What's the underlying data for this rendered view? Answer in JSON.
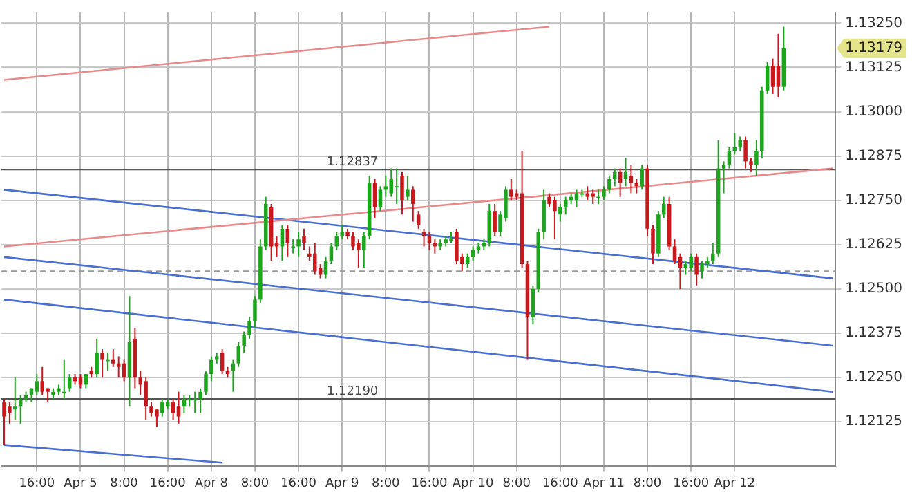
{
  "chart_data": {
    "type": "candlestick",
    "categories": [
      null,
      null,
      null,
      null,
      null,
      null,
      "16:00",
      null,
      null,
      null,
      null,
      null,
      null,
      null,
      "Apr 5",
      null,
      null,
      null,
      null,
      null,
      null,
      null,
      "8:00",
      null,
      null,
      null,
      null,
      null,
      null,
      null,
      "16:00",
      null,
      null,
      null,
      null,
      null,
      null,
      null,
      "Apr 8",
      null,
      null,
      null,
      null,
      null,
      null,
      null,
      "8:00",
      null,
      null,
      null,
      null,
      null,
      null,
      null,
      "16:00",
      null,
      null,
      null,
      null,
      null,
      null,
      null,
      "Apr 9",
      null,
      null,
      null,
      null,
      null,
      null,
      null,
      "8:00",
      null,
      null,
      null,
      null,
      null,
      null,
      null,
      "16:00",
      null,
      null,
      null,
      null,
      null,
      null,
      null,
      "Apr 10",
      null,
      null,
      null,
      null,
      null,
      null,
      null,
      "8:00",
      null,
      null,
      null,
      null,
      null,
      null,
      null,
      "16:00",
      null,
      null,
      null,
      null,
      null,
      null,
      null,
      "Apr 11",
      null,
      null,
      null,
      null,
      null,
      null,
      null,
      "8:00",
      null,
      null,
      null,
      null,
      null,
      null,
      null,
      "16:00",
      null,
      null,
      null,
      null,
      null,
      null,
      null,
      "Apr 12",
      null,
      null,
      null,
      null,
      null,
      null,
      null,
      null,
      null,
      null,
      null,
      null,
      null,
      null,
      null,
      null,
      null,
      null
    ],
    "ohlc": [
      [
        1.1218,
        1.1219,
        1.1206,
        1.1214
      ],
      [
        1.1217,
        1.1218,
        1.1212,
        1.1215
      ],
      [
        1.1216,
        1.1225,
        1.1213,
        1.1217
      ],
      [
        1.1217,
        1.122,
        1.1212,
        1.1219
      ],
      [
        1.1219,
        1.1221,
        1.1218,
        1.122
      ],
      [
        1.122,
        1.1222,
        1.1218,
        1.1222
      ],
      [
        1.1221,
        1.1226,
        1.122,
        1.1224
      ],
      [
        1.1224,
        1.1228,
        1.122,
        1.1221
      ],
      [
        1.1222,
        1.1222,
        1.1218,
        1.1221
      ],
      [
        1.122,
        1.1222,
        1.1219,
        1.1221
      ],
      [
        1.1221,
        1.1223,
        1.122,
        1.1222
      ],
      [
        1.1221,
        1.123,
        1.1219,
        1.1221
      ],
      [
        1.1222,
        1.1226,
        1.1221,
        1.1225
      ],
      [
        1.1225,
        1.1226,
        1.1223,
        1.1224
      ],
      [
        1.1225,
        1.1226,
        1.1222,
        1.1223
      ],
      [
        1.1223,
        1.1226,
        1.1222,
        1.1226
      ],
      [
        1.1227,
        1.1228,
        1.1225,
        1.1226
      ],
      [
        1.1226,
        1.1236,
        1.1225,
        1.1232
      ],
      [
        1.1232,
        1.1233,
        1.1225,
        1.123
      ],
      [
        1.123,
        1.1232,
        1.1227,
        1.123
      ],
      [
        1.123,
        1.1233,
        1.1228,
        1.1229
      ],
      [
        1.1229,
        1.1231,
        1.1225,
        1.1228
      ],
      [
        1.1229,
        1.123,
        1.1224,
        1.1225
      ],
      [
        1.1225,
        1.1248,
        1.1217,
        1.1235
      ],
      [
        1.1236,
        1.1239,
        1.1222,
        1.1225
      ],
      [
        1.1225,
        1.1227,
        1.122,
        1.1223
      ],
      [
        1.1224,
        1.1225,
        1.1213,
        1.1217
      ],
      [
        1.1217,
        1.1218,
        1.1214,
        1.1215
      ],
      [
        1.1216,
        1.1216,
        1.1211,
        1.1214
      ],
      [
        1.1215,
        1.1219,
        1.1214,
        1.1218
      ],
      [
        1.1217,
        1.1219,
        1.1216,
        1.1218
      ],
      [
        1.1218,
        1.1219,
        1.1213,
        1.1215
      ],
      [
        1.1217,
        1.1221,
        1.1212,
        1.1214
      ],
      [
        1.1217,
        1.122,
        1.1215,
        1.1219
      ],
      [
        1.1219,
        1.122,
        1.1217,
        1.1219
      ],
      [
        1.1219,
        1.1221,
        1.1215,
        1.1219
      ],
      [
        1.1219,
        1.1222,
        1.1215,
        1.1221
      ],
      [
        1.1221,
        1.1227,
        1.122,
        1.1226
      ],
      [
        1.1226,
        1.1231,
        1.1224,
        1.123
      ],
      [
        1.123,
        1.1232,
        1.1229,
        1.1231
      ],
      [
        1.1232,
        1.1233,
        1.1226,
        1.1227
      ],
      [
        1.1227,
        1.1228,
        1.1225,
        1.1226
      ],
      [
        1.1227,
        1.123,
        1.1221,
        1.1229
      ],
      [
        1.1229,
        1.1235,
        1.1228,
        1.1234
      ],
      [
        1.1234,
        1.1238,
        1.1232,
        1.1237
      ],
      [
        1.1237,
        1.1242,
        1.1236,
        1.1241
      ],
      [
        1.1241,
        1.1248,
        1.1239,
        1.1247
      ],
      [
        1.1247,
        1.1264,
        1.1246,
        1.1262
      ],
      [
        1.1262,
        1.1276,
        1.1261,
        1.1274
      ],
      [
        1.1273,
        1.1274,
        1.1258,
        1.1262
      ],
      [
        1.1263,
        1.1265,
        1.1259,
        1.1262
      ],
      [
        1.1262,
        1.1268,
        1.1258,
        1.1267
      ],
      [
        1.1267,
        1.1268,
        1.1259,
        1.1263
      ],
      [
        1.1262,
        1.1264,
        1.126,
        1.1262
      ],
      [
        1.1262,
        1.1266,
        1.1259,
        1.1264
      ],
      [
        1.1265,
        1.1267,
        1.1261,
        1.1263
      ],
      [
        1.126,
        1.1262,
        1.1258,
        1.1259
      ],
      [
        1.126,
        1.1263,
        1.1254,
        1.1255
      ],
      [
        1.1256,
        1.1257,
        1.1253,
        1.1254
      ],
      [
        1.1254,
        1.1259,
        1.1253,
        1.1258
      ],
      [
        1.1258,
        1.1263,
        1.1257,
        1.1262
      ],
      [
        1.1262,
        1.1266,
        1.1261,
        1.1265
      ],
      [
        1.1265,
        1.1268,
        1.1264,
        1.1266
      ],
      [
        1.1266,
        1.1267,
        1.1264,
        1.1265
      ],
      [
        1.1265,
        1.1266,
        1.1261,
        1.1262
      ],
      [
        1.1263,
        1.1264,
        1.1256,
        1.1261
      ],
      [
        1.1261,
        1.1266,
        1.1256,
        1.1265
      ],
      [
        1.1265,
        1.1282,
        1.1264,
        1.128
      ],
      [
        1.128,
        1.1281,
        1.127,
        1.1273
      ],
      [
        1.1273,
        1.1279,
        1.1272,
        1.1278
      ],
      [
        1.1278,
        1.1282,
        1.1276,
        1.1279
      ],
      [
        1.1277,
        1.1284,
        1.1276,
        1.1281
      ],
      [
        1.1279,
        1.1284,
        1.1274,
        1.1279
      ],
      [
        1.1282,
        1.1283,
        1.1271,
        1.1275
      ],
      [
        1.1276,
        1.1282,
        1.1275,
        1.1278
      ],
      [
        1.1278,
        1.1279,
        1.1269,
        1.1274
      ],
      [
        1.1271,
        1.1272,
        1.1267,
        1.1268
      ],
      [
        1.1266,
        1.1267,
        1.1262,
        1.1265
      ],
      [
        1.1265,
        1.1266,
        1.1261,
        1.1263
      ],
      [
        1.1263,
        1.1264,
        1.126,
        1.1262
      ],
      [
        1.1262,
        1.1264,
        1.1261,
        1.1263
      ],
      [
        1.1263,
        1.1265,
        1.1262,
        1.1264
      ],
      [
        1.1264,
        1.1266,
        1.1263,
        1.1264
      ],
      [
        1.1266,
        1.1267,
        1.1257,
        1.1258
      ],
      [
        1.1259,
        1.126,
        1.1255,
        1.1257
      ],
      [
        1.1257,
        1.126,
        1.1256,
        1.1259
      ],
      [
        1.1259,
        1.1262,
        1.1258,
        1.1261
      ],
      [
        1.1261,
        1.1263,
        1.126,
        1.1262
      ],
      [
        1.1262,
        1.1264,
        1.1261,
        1.1263
      ],
      [
        1.1263,
        1.1274,
        1.1262,
        1.1272
      ],
      [
        1.1272,
        1.1274,
        1.1265,
        1.1266
      ],
      [
        1.1266,
        1.1272,
        1.1265,
        1.1271
      ],
      [
        1.127,
        1.1279,
        1.1269,
        1.1278
      ],
      [
        1.1278,
        1.1281,
        1.1275,
        1.1276
      ],
      [
        1.1277,
        1.1278,
        1.1275,
        1.1276
      ],
      [
        1.1277,
        1.1289,
        1.1256,
        1.1257
      ],
      [
        1.1257,
        1.1258,
        1.123,
        1.1242
      ],
      [
        1.1242,
        1.1251,
        1.124,
        1.125
      ],
      [
        1.125,
        1.1267,
        1.1249,
        1.1266
      ],
      [
        1.1266,
        1.1278,
        1.1264,
        1.1275
      ],
      [
        1.1276,
        1.1277,
        1.1273,
        1.1274
      ],
      [
        1.1275,
        1.1276,
        1.1264,
        1.1272
      ],
      [
        1.1271,
        1.1274,
        1.1269,
        1.1273
      ],
      [
        1.1273,
        1.1276,
        1.1271,
        1.1275
      ],
      [
        1.1275,
        1.1277,
        1.1274,
        1.1276
      ],
      [
        1.1275,
        1.1278,
        1.1273,
        1.1277
      ],
      [
        1.1277,
        1.1278,
        1.1276,
        1.1277
      ],
      [
        1.1277,
        1.1279,
        1.1275,
        1.1276
      ],
      [
        1.1277,
        1.1278,
        1.1274,
        1.1276
      ],
      [
        1.1276,
        1.1278,
        1.1274,
        1.1276
      ],
      [
        1.1276,
        1.1279,
        1.1275,
        1.1278
      ],
      [
        1.1278,
        1.1282,
        1.1277,
        1.1281
      ],
      [
        1.1281,
        1.1284,
        1.1279,
        1.1283
      ],
      [
        1.1283,
        1.1284,
        1.1276,
        1.128
      ],
      [
        1.1281,
        1.1287,
        1.1279,
        1.1283
      ],
      [
        1.1282,
        1.1285,
        1.1277,
        1.128
      ],
      [
        1.128,
        1.1281,
        1.1277,
        1.1279
      ],
      [
        1.1279,
        1.1285,
        1.1278,
        1.1284
      ],
      [
        1.1284,
        1.1285,
        1.1265,
        1.1267
      ],
      [
        1.1267,
        1.1268,
        1.1257,
        1.126
      ],
      [
        1.126,
        1.1272,
        1.1259,
        1.1271
      ],
      [
        1.1271,
        1.1276,
        1.127,
        1.1274
      ],
      [
        1.1274,
        1.1276,
        1.1261,
        1.1262
      ],
      [
        1.1262,
        1.1264,
        1.1257,
        1.1258
      ],
      [
        1.1259,
        1.126,
        1.125,
        1.1256
      ],
      [
        1.1256,
        1.1258,
        1.1254,
        1.1257
      ],
      [
        1.1256,
        1.126,
        1.1255,
        1.1259
      ],
      [
        1.1259,
        1.126,
        1.1251,
        1.1254
      ],
      [
        1.1255,
        1.1258,
        1.1253,
        1.1257
      ],
      [
        1.1257,
        1.1259,
        1.1256,
        1.1258
      ],
      [
        1.1258,
        1.1263,
        1.1257,
        1.126
      ],
      [
        1.126,
        1.1292,
        1.1259,
        1.1284
      ],
      [
        1.1284,
        1.1286,
        1.1277,
        1.1285
      ],
      [
        1.1285,
        1.129,
        1.1284,
        1.1289
      ],
      [
        1.1289,
        1.1294,
        1.1288,
        1.129
      ],
      [
        1.129,
        1.1293,
        1.1289,
        1.1292
      ],
      [
        1.1292,
        1.1293,
        1.1284,
        1.1286
      ],
      [
        1.1286,
        1.1287,
        1.1283,
        1.1285
      ],
      [
        1.1285,
        1.1292,
        1.1282,
        1.1289
      ],
      [
        1.1289,
        1.1307,
        1.1287,
        1.1306
      ],
      [
        1.1306,
        1.1314,
        1.1305,
        1.1313
      ],
      [
        1.1313,
        1.1315,
        1.1305,
        1.1307
      ],
      [
        1.1313,
        1.1322,
        1.1304,
        1.1307
      ],
      [
        1.1307,
        1.1324,
        1.1306,
        1.13179
      ],
      null,
      null,
      null,
      null,
      null,
      null,
      null,
      null,
      null
    ],
    "colors": [
      "#c8191e",
      "#c8191e",
      "#1ea51e",
      "#1ea51e",
      "#1ea51e",
      "#1ea51e",
      "#1ea51e",
      "#c8191e",
      "#c8191e",
      "#1ea51e",
      "#1ea51e",
      "#1ea51e",
      "#1ea51e",
      "#c8191e",
      "#c8191e",
      "#1ea51e",
      "#c8191e",
      "#1ea51e",
      "#c8191e",
      "#1ea51e",
      "#c8191e",
      "#c8191e",
      "#c8191e",
      "#1ea51e",
      "#c8191e",
      "#c8191e",
      "#c8191e",
      "#c8191e",
      "#c8191e",
      "#1ea51e",
      "#1ea51e",
      "#c8191e",
      "#c8191e",
      "#1ea51e",
      "#1ea51e",
      "#1ea51e",
      "#1ea51e",
      "#1ea51e",
      "#1ea51e",
      "#1ea51e",
      "#c8191e",
      "#c8191e",
      "#1ea51e",
      "#1ea51e",
      "#1ea51e",
      "#1ea51e",
      "#1ea51e",
      "#1ea51e",
      "#1ea51e",
      "#c8191e",
      "#c8191e",
      "#1ea51e",
      "#c8191e",
      "#1ea51e",
      "#1ea51e",
      "#c8191e",
      "#c8191e",
      "#c8191e",
      "#c8191e",
      "#1ea51e",
      "#1ea51e",
      "#1ea51e",
      "#1ea51e",
      "#c8191e",
      "#c8191e",
      "#c8191e",
      "#1ea51e",
      "#1ea51e",
      "#c8191e",
      "#1ea51e",
      "#1ea51e",
      "#1ea51e",
      "#1ea51e",
      "#c8191e",
      "#1ea51e",
      "#c8191e",
      "#c8191e",
      "#c8191e",
      "#c8191e",
      "#c8191e",
      "#1ea51e",
      "#1ea51e",
      "#1ea51e",
      "#c8191e",
      "#c8191e",
      "#1ea51e",
      "#1ea51e",
      "#1ea51e",
      "#1ea51e",
      "#1ea51e",
      "#c8191e",
      "#1ea51e",
      "#1ea51e",
      "#c8191e",
      "#c8191e",
      "#c8191e",
      "#c8191e",
      "#1ea51e",
      "#1ea51e",
      "#1ea51e",
      "#c8191e",
      "#c8191e",
      "#1ea51e",
      "#1ea51e",
      "#1ea51e",
      "#1ea51e",
      "#1ea51e",
      "#c8191e",
      "#c8191e",
      "#1ea51e",
      "#1ea51e",
      "#1ea51e",
      "#1ea51e",
      "#c8191e",
      "#1ea51e",
      "#c8191e",
      "#c8191e",
      "#1ea51e",
      "#c8191e",
      "#c8191e",
      "#1ea51e",
      "#1ea51e",
      "#c8191e",
      "#c8191e",
      "#c8191e",
      "#1ea51e",
      "#1ea51e",
      "#c8191e",
      "#1ea51e",
      "#1ea51e",
      "#1ea51e",
      "#1ea51e",
      "#1ea51e",
      "#1ea51e",
      "#1ea51e",
      "#1ea51e",
      "#c8191e",
      "#c8191e",
      "#1ea51e",
      "#1ea51e",
      "#1ea51e",
      "#c8191e",
      "#c8191e",
      "#1ea51e",
      null,
      null,
      null,
      null,
      null,
      null,
      null,
      null,
      null
    ],
    "series": [
      {
        "type": "line",
        "color": "#e88a8a",
        "values": [
          1.1309,
          null,
          null,
          null,
          null,
          null,
          null,
          null,
          null,
          null,
          null,
          null,
          null,
          null,
          null,
          null,
          null,
          null,
          null,
          null,
          null,
          null,
          null,
          null,
          null,
          null,
          null,
          null,
          null,
          null,
          null,
          null,
          null,
          null,
          null,
          null,
          null,
          null,
          null,
          null,
          null,
          null,
          null,
          null,
          null,
          null,
          null,
          null,
          null,
          null,
          null,
          null,
          null,
          null,
          null,
          null,
          null,
          null,
          null,
          null,
          null,
          null,
          null,
          null,
          null,
          null,
          null,
          null,
          null,
          null,
          null,
          null,
          null,
          null,
          null,
          null,
          null,
          null,
          null,
          null,
          null,
          null,
          null,
          null,
          null,
          null,
          null,
          null,
          null,
          null,
          null,
          null,
          null,
          null,
          null,
          null,
          null,
          null,
          null,
          null,
          1.1324,
          null,
          null,
          null,
          null,
          null,
          null,
          null,
          null,
          null,
          null,
          null,
          null,
          null,
          null,
          null,
          null,
          null,
          null,
          null,
          null,
          null,
          null,
          null,
          null,
          null,
          null,
          null,
          null,
          null,
          null,
          null,
          null,
          null,
          null,
          null,
          null,
          null,
          null,
          null,
          null,
          null,
          null,
          null,
          null,
          null,
          null,
          null,
          null,
          null,
          null,
          null,
          null
        ]
      },
      {
        "type": "line",
        "color": "#e88a8a",
        "values": [
          1.1262,
          null,
          null,
          null,
          null,
          null,
          null,
          null,
          null,
          null,
          null,
          null,
          null,
          null,
          null,
          null,
          null,
          null,
          null,
          null,
          null,
          null,
          null,
          null,
          null,
          null,
          null,
          null,
          null,
          null,
          null,
          null,
          null,
          null,
          null,
          null,
          null,
          null,
          null,
          null,
          null,
          null,
          null,
          null,
          null,
          null,
          null,
          null,
          null,
          null,
          null,
          null,
          null,
          null,
          null,
          null,
          null,
          null,
          null,
          null,
          null,
          null,
          null,
          null,
          null,
          null,
          null,
          null,
          null,
          null,
          null,
          null,
          null,
          null,
          null,
          null,
          null,
          null,
          null,
          null,
          null,
          null,
          null,
          null,
          null,
          null,
          null,
          null,
          null,
          null,
          null,
          null,
          null,
          null,
          null,
          null,
          null,
          null,
          null,
          null,
          null,
          null,
          null,
          null,
          null,
          null,
          null,
          null,
          null,
          null,
          null,
          null,
          null,
          null,
          null,
          null,
          null,
          null,
          null,
          null,
          null,
          null,
          null,
          null,
          null,
          null,
          null,
          null,
          null,
          null,
          null,
          null,
          null,
          null,
          null,
          null,
          null,
          null,
          null,
          null,
          null,
          null,
          null,
          null,
          null,
          null,
          null,
          null,
          null,
          null,
          null,
          null,
          1.1284
        ]
      },
      {
        "type": "line",
        "color": "#4a6fd0",
        "values": [
          1.1278,
          null,
          null,
          null,
          null,
          null,
          null,
          null,
          null,
          null,
          null,
          null,
          null,
          null,
          null,
          null,
          null,
          null,
          null,
          null,
          null,
          null,
          null,
          null,
          null,
          null,
          null,
          null,
          null,
          null,
          null,
          null,
          null,
          null,
          null,
          null,
          null,
          null,
          null,
          null,
          null,
          null,
          null,
          null,
          null,
          null,
          null,
          null,
          null,
          null,
          null,
          null,
          null,
          null,
          null,
          null,
          null,
          null,
          null,
          null,
          null,
          null,
          null,
          null,
          null,
          null,
          null,
          null,
          null,
          null,
          null,
          null,
          null,
          null,
          null,
          null,
          null,
          null,
          null,
          null,
          null,
          null,
          null,
          null,
          null,
          null,
          null,
          null,
          null,
          null,
          null,
          null,
          null,
          null,
          null,
          null,
          null,
          null,
          null,
          null,
          null,
          null,
          null,
          null,
          null,
          null,
          null,
          null,
          null,
          null,
          null,
          null,
          null,
          null,
          null,
          null,
          null,
          null,
          null,
          null,
          null,
          null,
          null,
          null,
          null,
          null,
          null,
          null,
          null,
          null,
          null,
          null,
          null,
          null,
          null,
          null,
          null,
          null,
          null,
          null,
          null,
          null,
          null,
          null,
          null,
          null,
          null,
          null,
          null,
          null,
          null,
          null,
          1.1253
        ]
      },
      {
        "type": "line",
        "color": "#4a6fd0",
        "values": [
          1.1259,
          null,
          null,
          null,
          null,
          null,
          null,
          null,
          null,
          null,
          null,
          null,
          null,
          null,
          null,
          null,
          null,
          null,
          null,
          null,
          null,
          null,
          null,
          null,
          null,
          null,
          null,
          null,
          null,
          null,
          null,
          null,
          null,
          null,
          null,
          null,
          null,
          null,
          null,
          null,
          null,
          null,
          null,
          null,
          null,
          null,
          null,
          null,
          null,
          null,
          null,
          null,
          null,
          null,
          null,
          null,
          null,
          null,
          null,
          null,
          null,
          null,
          null,
          null,
          null,
          null,
          null,
          null,
          null,
          null,
          null,
          null,
          null,
          null,
          null,
          null,
          null,
          null,
          null,
          null,
          null,
          null,
          null,
          null,
          null,
          null,
          null,
          null,
          null,
          null,
          null,
          null,
          null,
          null,
          null,
          null,
          null,
          null,
          null,
          null,
          null,
          null,
          null,
          null,
          null,
          null,
          null,
          null,
          null,
          null,
          null,
          null,
          null,
          null,
          null,
          null,
          null,
          null,
          null,
          null,
          null,
          null,
          null,
          null,
          null,
          null,
          null,
          null,
          null,
          null,
          null,
          null,
          null,
          null,
          null,
          null,
          null,
          null,
          null,
          null,
          null,
          null,
          null,
          null,
          null,
          null,
          null,
          null,
          null,
          null,
          null,
          null,
          1.1234
        ]
      },
      {
        "type": "line",
        "color": "#4a6fd0",
        "values": [
          1.1247,
          null,
          null,
          null,
          null,
          null,
          null,
          null,
          null,
          null,
          null,
          null,
          null,
          null,
          null,
          null,
          null,
          null,
          null,
          null,
          null,
          null,
          null,
          null,
          null,
          null,
          null,
          null,
          null,
          null,
          null,
          null,
          null,
          null,
          null,
          null,
          null,
          null,
          null,
          null,
          null,
          null,
          null,
          null,
          null,
          null,
          null,
          null,
          null,
          null,
          null,
          null,
          null,
          null,
          null,
          null,
          null,
          null,
          null,
          null,
          null,
          null,
          null,
          null,
          null,
          null,
          null,
          null,
          null,
          null,
          null,
          null,
          null,
          null,
          null,
          null,
          null,
          null,
          null,
          null,
          null,
          null,
          null,
          null,
          null,
          null,
          null,
          null,
          null,
          null,
          null,
          null,
          null,
          null,
          null,
          null,
          null,
          null,
          null,
          null,
          null,
          null,
          null,
          null,
          null,
          null,
          null,
          null,
          null,
          null,
          null,
          null,
          null,
          null,
          null,
          null,
          null,
          null,
          null,
          null,
          null,
          null,
          null,
          null,
          null,
          null,
          null,
          null,
          null,
          null,
          null,
          null,
          null,
          null,
          null,
          null,
          null,
          null,
          null,
          null,
          null,
          null,
          null,
          null,
          null,
          null,
          null,
          null,
          null,
          null,
          null,
          null,
          1.1221
        ]
      },
      {
        "type": "line",
        "color": "#4a6fd0",
        "values": [
          1.1206,
          null,
          null,
          null,
          null,
          null,
          null,
          null,
          null,
          null,
          null,
          null,
          null,
          null,
          null,
          null,
          null,
          null,
          null,
          null,
          null,
          null,
          null,
          null,
          null,
          null,
          null,
          null,
          null,
          null,
          null,
          null,
          null,
          null,
          null,
          null,
          null,
          null,
          null,
          null,
          1.1201,
          null,
          null,
          null,
          null,
          null,
          null,
          null,
          null,
          null,
          null,
          null,
          null,
          null,
          null,
          null,
          null,
          null,
          null,
          null,
          null,
          null,
          null,
          null,
          null,
          null,
          null,
          null,
          null,
          null,
          null,
          null,
          null,
          null,
          null,
          null,
          null,
          null,
          null,
          null,
          null,
          null,
          null,
          null,
          null,
          null,
          null,
          null,
          null,
          null,
          null,
          null,
          null,
          null,
          null,
          null,
          null,
          null,
          null,
          null,
          null,
          null,
          null,
          null,
          null,
          null,
          null,
          null,
          null,
          null,
          null,
          null,
          null,
          null,
          null,
          null,
          null,
          null,
          null,
          null,
          null,
          null,
          null,
          null,
          null,
          null,
          null,
          null,
          null,
          null,
          null,
          null,
          null,
          null,
          null,
          null,
          null,
          null,
          null,
          null,
          null,
          null,
          null,
          null,
          null,
          null,
          null,
          null,
          null,
          null,
          null,
          null,
          null
        ]
      }
    ],
    "ylim": [
      1.12,
      1.1328
    ],
    "yticks": [
      1.12125,
      {
        "value": 1.1225,
        "label": "1.12250"
      },
      1.12375,
      {
        "value": 1.125,
        "label": "1.12500"
      },
      1.12625,
      {
        "value": 1.1275,
        "label": "1.12750"
      },
      1.12875,
      {
        "value": 1.13,
        "label": "1.13000"
      },
      1.13125,
      {
        "value": 1.1325,
        "label": "1.13250"
      }
    ],
    "ref_lines": [
      {
        "axis": "y",
        "value": 1.12837,
        "label": "1.12837",
        "color": "#555555"
      },
      {
        "axis": "y",
        "value": 1.1219,
        "label": "1.12190",
        "color": "#555555"
      },
      {
        "axis": "y",
        "value": 1.1255,
        "color": "#999999",
        "line_style": "dashed"
      }
    ],
    "annotations": [
      "1.13179"
    ],
    "grid": true
  }
}
